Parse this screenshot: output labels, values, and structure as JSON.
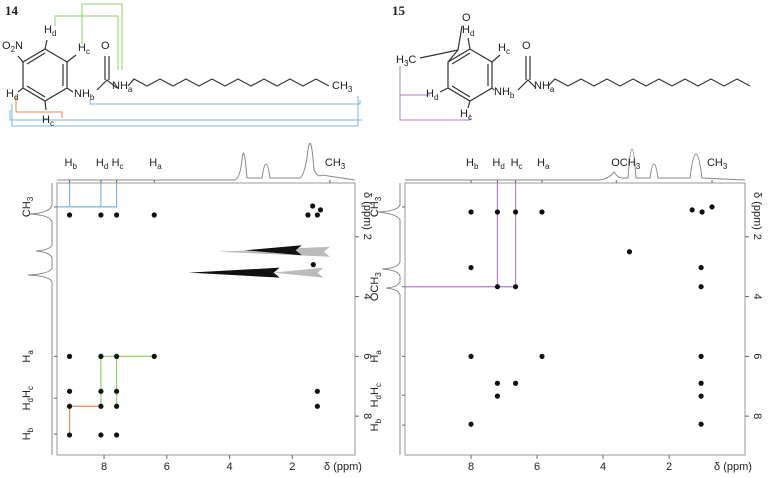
{
  "structures": [
    {
      "labels": [
        {
          "parts": [
            {
              "text": "O"
            },
            {
              "sub": "2"
            },
            {
              "text": "N"
            }
          ]
        },
        {
          "parts": [
            {
              "text": "H"
            },
            {
              "sub": "d"
            }
          ]
        },
        {
          "parts": [
            {
              "text": "H"
            },
            {
              "sub": "c"
            }
          ]
        },
        {
          "parts": [
            {
              "text": "H"
            },
            {
              "sub": "d"
            }
          ]
        },
        {
          "parts": [
            {
              "text": "H"
            },
            {
              "sub": "c"
            }
          ]
        },
        {
          "parts": [
            {
              "text": "NH"
            },
            {
              "sub": "b"
            }
          ]
        },
        {
          "parts": [
            {
              "text": "O"
            }
          ]
        },
        {
          "parts": [
            {
              "text": "NH"
            },
            {
              "sub": "a"
            }
          ]
        },
        {
          "parts": [
            {
              "text": "CH"
            },
            {
              "sub": "3"
            }
          ]
        }
      ]
    },
    {
      "labels": [
        {
          "parts": [
            {
              "text": "O"
            }
          ]
        },
        {
          "parts": [
            {
              "text": "H"
            },
            {
              "sub": "3"
            },
            {
              "text": "C"
            }
          ]
        },
        {
          "parts": [
            {
              "text": "H"
            },
            {
              "sub": "d"
            }
          ]
        },
        {
          "parts": [
            {
              "text": "H"
            },
            {
              "sub": "c"
            }
          ]
        },
        {
          "parts": [
            {
              "text": "H"
            },
            {
              "sub": "d"
            }
          ]
        },
        {
          "parts": [
            {
              "text": "H"
            },
            {
              "sub": "c"
            }
          ]
        },
        {
          "parts": [
            {
              "text": "NH"
            },
            {
              "sub": "b"
            }
          ]
        },
        {
          "parts": [
            {
              "text": "O"
            }
          ]
        },
        {
          "parts": [
            {
              "text": "NH"
            },
            {
              "sub": "a"
            }
          ]
        }
      ]
    }
  ],
  "chart_data": [
    {
      "type": "scatter",
      "title": "14",
      "xlabel": "δ (ppm)",
      "ylabel": "δ (ppm)",
      "xlim": [
        9.5,
        0
      ],
      "ylim": [
        0.2,
        9.3
      ],
      "xticks": [
        8,
        6,
        4,
        2
      ],
      "yticks": [
        2,
        4,
        6,
        8
      ],
      "peaks": {
        "color": "#111111",
        "x": [
          9.1,
          8.1,
          7.6,
          6.4,
          1.5,
          1.2,
          1.35,
          1.1,
          9.1,
          8.1,
          7.6,
          6.4,
          9.1,
          8.1,
          7.6,
          1.2,
          9.1,
          8.1,
          7.6,
          1.2,
          9.1,
          8.1,
          7.6,
          1.33
        ],
        "y": [
          1.27,
          1.27,
          1.27,
          1.27,
          1.27,
          1.27,
          0.97,
          1.1,
          6.0,
          6.0,
          6.0,
          6.0,
          7.17,
          7.17,
          7.17,
          7.17,
          7.67,
          7.67,
          7.67,
          7.67,
          8.63,
          8.63,
          8.63,
          2.93
        ]
      },
      "streaks": [
        {
          "y": 2.5,
          "x": [
            4.4,
            0.8
          ],
          "color": "#bbbbbb"
        },
        {
          "y": 2.45,
          "x": [
            3.5,
            1.7
          ],
          "color": "#111111"
        },
        {
          "y": 3.2,
          "x": [
            2.6,
            1.0
          ],
          "color": "#bbbbbb"
        },
        {
          "y": 3.2,
          "x": [
            5.3,
            2.4
          ],
          "color": "#111111"
        }
      ],
      "guides": [
        {
          "color": "#7fb6d9",
          "points": [
            [
              9.1,
              0.2
            ],
            [
              9.1,
              1.0
            ]
          ]
        },
        {
          "color": "#7fb6d9",
          "points": [
            [
              8.1,
              0.2
            ],
            [
              8.1,
              1.0
            ]
          ]
        },
        {
          "color": "#7fb6d9",
          "points": [
            [
              7.6,
              0.2
            ],
            [
              7.6,
              1.0
            ],
            [
              9.5,
              1.0
            ]
          ]
        },
        {
          "color": "#8fd16a",
          "points": [
            [
              8.1,
              7.67
            ],
            [
              8.1,
              6.0
            ],
            [
              6.4,
              6.0
            ]
          ]
        },
        {
          "color": "#8fd16a",
          "points": [
            [
              7.6,
              7.67
            ],
            [
              7.6,
              6.0
            ]
          ]
        },
        {
          "color": "#e8875a",
          "points": [
            [
              8.1,
              7.67
            ],
            [
              9.1,
              7.67
            ],
            [
              9.1,
              8.63
            ]
          ]
        }
      ],
      "top_labels": [
        {
          "x": 9.1,
          "parts": [
            {
              "text": "H"
            },
            {
              "sub": "b"
            }
          ]
        },
        {
          "x": 8.1,
          "parts": [
            {
              "text": "H"
            },
            {
              "sub": "d"
            }
          ]
        },
        {
          "x": 7.6,
          "parts": [
            {
              "text": "H"
            },
            {
              "sub": "c"
            }
          ]
        },
        {
          "x": 6.4,
          "parts": [
            {
              "text": "H"
            },
            {
              "sub": "a"
            }
          ]
        },
        {
          "x": 0.8,
          "parts": [
            {
              "text": "CH"
            },
            {
              "sub": "3"
            }
          ]
        }
      ],
      "side_labels": [
        {
          "y": 1.0,
          "parts": [
            {
              "text": "CH"
            },
            {
              "sub": "3"
            }
          ]
        },
        {
          "y": 6.0,
          "parts": [
            {
              "text": "H"
            },
            {
              "sub": "a"
            }
          ]
        },
        {
          "y": 7.4,
          "parts": [
            {
              "text": "H"
            },
            {
              "sub": "d"
            },
            {
              "text": "H"
            },
            {
              "sub": "c"
            }
          ]
        },
        {
          "y": 8.6,
          "parts": [
            {
              "text": "H"
            },
            {
              "sub": "b"
            }
          ]
        }
      ]
    },
    {
      "type": "scatter",
      "title": "15",
      "xlabel": "δ (ppm)",
      "ylabel": "δ (ppm)",
      "xlim": [
        10,
        -0.3
      ],
      "ylim": [
        0.2,
        9.3
      ],
      "xticks": [
        8,
        6,
        4,
        2
      ],
      "yticks": [
        2,
        4,
        6,
        8
      ],
      "peaks": {
        "color": "#111111",
        "x": [
          8.0,
          7.2,
          6.65,
          5.85,
          1.3,
          1.0,
          0.7,
          3.2,
          8.0,
          1.03,
          7.2,
          6.65,
          1.03,
          8.0,
          5.85,
          1.03,
          7.2,
          6.65,
          1.03,
          7.2,
          1.03,
          8.0,
          1.03
        ],
        "y": [
          1.17,
          1.17,
          1.17,
          1.17,
          1.1,
          1.17,
          1.0,
          2.5,
          3.03,
          3.03,
          3.67,
          3.67,
          3.67,
          6.0,
          6.0,
          6.0,
          6.9,
          6.9,
          6.9,
          7.33,
          7.33,
          8.27,
          8.27
        ]
      },
      "streaks": [],
      "guides": [
        {
          "color": "#b27fc9",
          "points": [
            [
              7.2,
              0.2
            ],
            [
              7.2,
              3.67
            ]
          ]
        },
        {
          "color": "#b27fc9",
          "points": [
            [
              6.65,
              0.2
            ],
            [
              6.65,
              3.67
            ],
            [
              10,
              3.67
            ]
          ]
        }
      ],
      "top_labels": [
        {
          "x": 8.0,
          "parts": [
            {
              "text": "H"
            },
            {
              "sub": "b"
            }
          ]
        },
        {
          "x": 7.2,
          "parts": [
            {
              "text": "H"
            },
            {
              "sub": "d"
            }
          ]
        },
        {
          "x": 6.65,
          "parts": [
            {
              "text": "H"
            },
            {
              "sub": "c"
            }
          ]
        },
        {
          "x": 5.85,
          "parts": [
            {
              "text": "H"
            },
            {
              "sub": "a"
            }
          ]
        },
        {
          "x": 3.6,
          "parts": [
            {
              "text": "OCH"
            },
            {
              "sub": "3"
            }
          ]
        },
        {
          "x": 0.7,
          "parts": [
            {
              "text": "CH"
            },
            {
              "sub": "3"
            }
          ]
        }
      ],
      "side_labels": [
        {
          "y": 1.0,
          "parts": [
            {
              "text": "CH"
            },
            {
              "sub": "3"
            }
          ]
        },
        {
          "y": 3.67,
          "parts": [
            {
              "text": "OCH"
            },
            {
              "sub": "3"
            }
          ]
        },
        {
          "y": 6.0,
          "parts": [
            {
              "text": "H"
            },
            {
              "sub": "a"
            }
          ]
        },
        {
          "y": 7.3,
          "parts": [
            {
              "text": "H"
            },
            {
              "sub": "d"
            },
            {
              "text": "H"
            },
            {
              "sub": "c"
            }
          ]
        },
        {
          "y": 8.3,
          "parts": [
            {
              "text": "H"
            },
            {
              "sub": "b"
            }
          ]
        }
      ]
    }
  ]
}
